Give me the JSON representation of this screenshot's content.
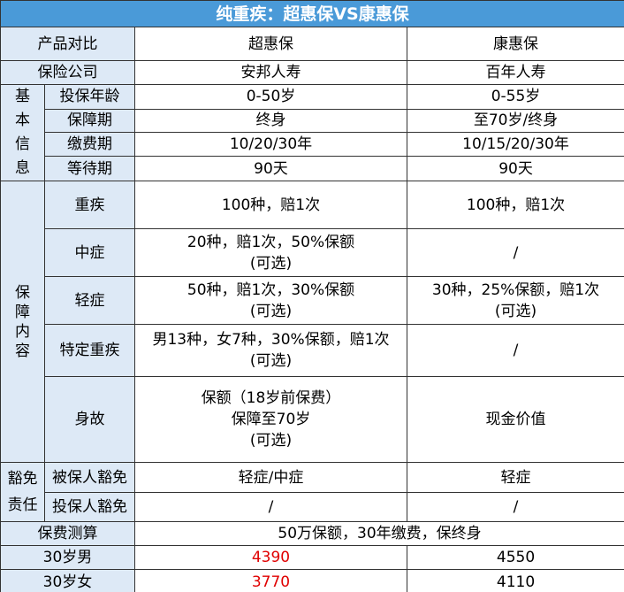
{
  "title": "纯重疾：超惠保VS康惠保",
  "header": [
    "产品对比",
    "超惠保",
    "康惠保"
  ],
  "company": {
    "label": "保险公司",
    "values": [
      "安邦人寿",
      "百年人寿"
    ]
  },
  "basic": {
    "group": "基本信息",
    "rows": [
      {
        "label": "投保年龄",
        "values": [
          "0-50岁",
          "0-55岁"
        ]
      },
      {
        "label": "保障期",
        "values": [
          "终身",
          "至70岁/终身"
        ]
      },
      {
        "label": "缴费期",
        "values": [
          "10/20/30年",
          "10/15/20/30年"
        ]
      },
      {
        "label": "等待期",
        "values": [
          "90天",
          "90天"
        ]
      }
    ]
  },
  "coverage": {
    "group": "保障内容",
    "rows": [
      {
        "label": "重疾",
        "values": [
          [
            "100种，赔1次"
          ],
          [
            "100种，赔1次"
          ]
        ]
      },
      {
        "label": "中症",
        "values": [
          [
            "20种，赔1次，50%保额",
            "(可选)"
          ],
          [
            "/"
          ]
        ]
      },
      {
        "label": "轻症",
        "values": [
          [
            "50种，赔1次，30%保额",
            "(可选)"
          ],
          [
            "30种，25%保额，赔1次",
            "(可选)"
          ]
        ]
      },
      {
        "label": "特定重疾",
        "values": [
          [
            "男13种，女7种，30%保额，赔1次",
            "(可选)"
          ],
          [
            "/"
          ]
        ]
      },
      {
        "label": "身故",
        "values": [
          [
            "保额（18岁前保费）",
            "保障至70岁",
            "(可选)"
          ],
          [
            "现金价值"
          ]
        ]
      }
    ]
  },
  "waiver": {
    "group": "豁免责任",
    "rows": [
      {
        "label": "被保人豁免",
        "values": [
          "轻症/中症",
          "轻症"
        ]
      },
      {
        "label": "投保人豁免",
        "values": [
          "/",
          "/"
        ]
      }
    ]
  },
  "premium": {
    "label": "保费测算",
    "note": "50万保额，30年缴费，保终身",
    "rows": [
      {
        "label": "30岁男",
        "values": [
          "4390",
          "4550"
        ]
      },
      {
        "label": "30岁女",
        "values": [
          "3770",
          "4110"
        ]
      }
    ]
  }
}
